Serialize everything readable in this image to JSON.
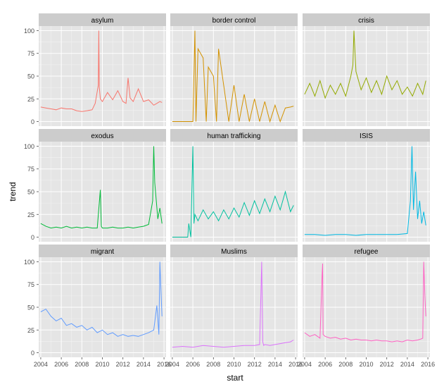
{
  "chart_data": {
    "type": "line",
    "layout": "facet-grid-3x3",
    "xlabel": "start",
    "ylabel": "trend",
    "x_ticks": [
      "2004",
      "2006",
      "2008",
      "2010",
      "2012",
      "2014",
      "2016"
    ],
    "y_ticks": [
      "0",
      "25",
      "50",
      "75",
      "100"
    ],
    "xlim": [
      2003.8,
      2016.2
    ],
    "ylim": [
      -5,
      105
    ],
    "grid": true,
    "legend": "none",
    "panels": [
      {
        "title": "asylum",
        "color": "#F8766D",
        "x": [
          2004,
          2004.5,
          2005,
          2005.5,
          2006,
          2006.5,
          2007,
          2007.5,
          2008,
          2008.5,
          2009,
          2009.3,
          2009.6,
          2009.65,
          2009.7,
          2009.8,
          2010,
          2010.5,
          2011,
          2011.5,
          2012,
          2012.3,
          2012.5,
          2012.7,
          2013,
          2013.5,
          2014,
          2014.5,
          2015,
          2015.3,
          2015.6,
          2015.8
        ],
        "values": [
          16,
          15,
          14,
          13,
          15,
          14,
          14,
          12,
          11,
          12,
          13,
          20,
          40,
          100,
          38,
          25,
          22,
          32,
          24,
          34,
          22,
          20,
          48,
          26,
          22,
          36,
          22,
          24,
          18,
          20,
          22,
          21
        ]
      },
      {
        "title": "border control",
        "color": "#D39200",
        "x": [
          2004,
          2005,
          2005.5,
          2006,
          2006.2,
          2006.3,
          2006.5,
          2007,
          2007.3,
          2007.5,
          2008,
          2008.3,
          2008.5,
          2009,
          2009.5,
          2010,
          2010.5,
          2011,
          2011.5,
          2012,
          2012.5,
          2013,
          2013.5,
          2014,
          2014.5,
          2015,
          2015.5,
          2015.8
        ],
        "values": [
          0,
          0,
          0,
          0,
          100,
          0,
          80,
          70,
          0,
          60,
          50,
          0,
          80,
          40,
          0,
          40,
          0,
          30,
          0,
          25,
          0,
          22,
          0,
          18,
          0,
          15,
          16,
          17
        ]
      },
      {
        "title": "crisis",
        "color": "#93AA00",
        "x": [
          2004,
          2004.5,
          2005,
          2005.5,
          2006,
          2006.5,
          2007,
          2007.5,
          2008,
          2008.5,
          2008.7,
          2008.8,
          2009,
          2009.5,
          2010,
          2010.5,
          2011,
          2011.5,
          2012,
          2012.5,
          2013,
          2013.5,
          2014,
          2014.5,
          2015,
          2015.5,
          2015.8
        ],
        "values": [
          30,
          42,
          28,
          45,
          26,
          40,
          30,
          42,
          28,
          50,
          62,
          100,
          55,
          35,
          48,
          32,
          45,
          30,
          50,
          35,
          45,
          30,
          38,
          28,
          42,
          30,
          45
        ]
      },
      {
        "title": "exodus",
        "color": "#00BA38",
        "x": [
          2004,
          2004.5,
          2005,
          2005.5,
          2006,
          2006.5,
          2007,
          2007.5,
          2008,
          2008.5,
          2009,
          2009.5,
          2009.8,
          2009.9,
          2010,
          2010.5,
          2011,
          2011.5,
          2012,
          2012.5,
          2013,
          2013.5,
          2014,
          2014.5,
          2014.9,
          2015,
          2015.1,
          2015.4,
          2015.6,
          2015.8
        ],
        "values": [
          15,
          12,
          10,
          11,
          10,
          12,
          10,
          11,
          10,
          11,
          10,
          10,
          52,
          12,
          10,
          10,
          11,
          10,
          10,
          11,
          10,
          11,
          12,
          14,
          40,
          100,
          60,
          20,
          32,
          15
        ]
      },
      {
        "title": "human trafficking",
        "color": "#00C19F",
        "x": [
          2004,
          2005,
          2005.5,
          2005.6,
          2005.8,
          2006,
          2006.1,
          2006.2,
          2006.5,
          2007,
          2007.5,
          2008,
          2008.5,
          2009,
          2009.5,
          2010,
          2010.5,
          2011,
          2011.5,
          2012,
          2012.5,
          2013,
          2013.5,
          2014,
          2014.5,
          2015,
          2015.5,
          2015.8
        ],
        "values": [
          0,
          0,
          0,
          15,
          0,
          100,
          15,
          25,
          18,
          30,
          20,
          28,
          18,
          30,
          20,
          32,
          22,
          38,
          24,
          40,
          26,
          42,
          28,
          45,
          30,
          50,
          28,
          35
        ]
      },
      {
        "title": "ISIS",
        "color": "#00B9E3",
        "x": [
          2004,
          2005,
          2006,
          2007,
          2008,
          2009,
          2010,
          2011,
          2012,
          2013,
          2014,
          2014.3,
          2014.45,
          2014.6,
          2014.8,
          2015,
          2015.2,
          2015.4,
          2015.6,
          2015.8
        ],
        "values": [
          3,
          3,
          2,
          3,
          3,
          2,
          3,
          3,
          3,
          3,
          4,
          40,
          100,
          30,
          72,
          20,
          40,
          15,
          28,
          13
        ]
      },
      {
        "title": "migrant",
        "color": "#619CFF",
        "x": [
          2004,
          2004.5,
          2005,
          2005.5,
          2006,
          2006.5,
          2007,
          2007.5,
          2008,
          2008.5,
          2009,
          2009.5,
          2010,
          2010.5,
          2011,
          2011.5,
          2012,
          2012.5,
          2013,
          2013.5,
          2014,
          2014.5,
          2015,
          2015.3,
          2015.5,
          2015.6,
          2015.7,
          2015.8
        ],
        "values": [
          45,
          48,
          40,
          35,
          38,
          30,
          32,
          28,
          30,
          25,
          28,
          22,
          25,
          20,
          22,
          18,
          20,
          18,
          19,
          18,
          20,
          22,
          25,
          52,
          20,
          100,
          70,
          40
        ]
      },
      {
        "title": "Muslims",
        "color": "#DB72FB",
        "x": [
          2004,
          2005,
          2006,
          2007,
          2008,
          2009,
          2010,
          2011,
          2012,
          2012.5,
          2012.7,
          2012.8,
          2012.9,
          2013,
          2013.5,
          2014,
          2014.5,
          2015,
          2015.5,
          2015.8
        ],
        "values": [
          6,
          7,
          6,
          8,
          7,
          6,
          7,
          8,
          8,
          9,
          100,
          12,
          8,
          9,
          8,
          9,
          10,
          11,
          12,
          14
        ]
      },
      {
        "title": "refugee",
        "color": "#FF61C3",
        "x": [
          2004,
          2004.5,
          2005,
          2005.5,
          2005.7,
          2005.75,
          2005.8,
          2006,
          2006.5,
          2007,
          2007.5,
          2008,
          2008.5,
          2009,
          2009.5,
          2010,
          2010.5,
          2011,
          2011.5,
          2012,
          2012.5,
          2013,
          2013.5,
          2014,
          2014.5,
          2015,
          2015.3,
          2015.5,
          2015.6,
          2015.7,
          2015.8
        ],
        "values": [
          22,
          18,
          20,
          16,
          85,
          98,
          20,
          18,
          16,
          17,
          15,
          16,
          14,
          15,
          14,
          14,
          13,
          14,
          13,
          13,
          12,
          13,
          12,
          14,
          13,
          14,
          15,
          16,
          100,
          65,
          40
        ]
      }
    ]
  }
}
